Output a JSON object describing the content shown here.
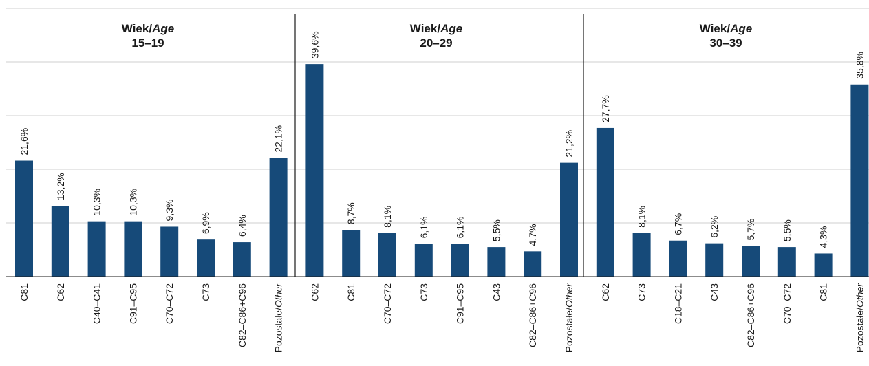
{
  "chart_data": {
    "type": "bar",
    "ylim": [
      0,
      50
    ],
    "grid": true,
    "bar_color": "#164a79",
    "panels": [
      {
        "title_prefix": "Wiek/",
        "title_italic": "Age",
        "age_range": "15–19",
        "categories": [
          {
            "code": "C81",
            "italic_part": ""
          },
          {
            "code": "C62",
            "italic_part": ""
          },
          {
            "code": "C40–C41",
            "italic_part": ""
          },
          {
            "code": "C91–C95",
            "italic_part": ""
          },
          {
            "code": "C70–C72",
            "italic_part": ""
          },
          {
            "code": "C73",
            "italic_part": ""
          },
          {
            "code": "C82–C86+C96",
            "italic_part": ""
          },
          {
            "code": "Pozostałe/",
            "italic_part": "Other"
          }
        ],
        "values": [
          21.6,
          13.2,
          10.3,
          10.3,
          9.3,
          6.9,
          6.4,
          22.1
        ],
        "value_labels": [
          "21,6%",
          "13,2%",
          "10,3%",
          "10,3%",
          "9,3%",
          "6,9%",
          "6,4%",
          "22,1%"
        ]
      },
      {
        "title_prefix": "Wiek/",
        "title_italic": "Age",
        "age_range": "20–29",
        "categories": [
          {
            "code": "C62",
            "italic_part": ""
          },
          {
            "code": "C81",
            "italic_part": ""
          },
          {
            "code": "C70–C72",
            "italic_part": ""
          },
          {
            "code": "C73",
            "italic_part": ""
          },
          {
            "code": "C91–C95",
            "italic_part": ""
          },
          {
            "code": "C43",
            "italic_part": ""
          },
          {
            "code": "C82–C86+C96",
            "italic_part": ""
          },
          {
            "code": "Pozostałe/",
            "italic_part": "Other"
          }
        ],
        "values": [
          39.6,
          8.7,
          8.1,
          6.1,
          6.1,
          5.5,
          4.7,
          21.2
        ],
        "value_labels": [
          "39,6%",
          "8,7%",
          "8,1%",
          "6,1%",
          "6,1%",
          "5,5%",
          "4,7%",
          "21,2%"
        ]
      },
      {
        "title_prefix": "Wiek/",
        "title_italic": "Age",
        "age_range": "30–39",
        "categories": [
          {
            "code": "C62",
            "italic_part": ""
          },
          {
            "code": "C73",
            "italic_part": ""
          },
          {
            "code": "C18–C21",
            "italic_part": ""
          },
          {
            "code": "C43",
            "italic_part": ""
          },
          {
            "code": "C82–C86+C96",
            "italic_part": ""
          },
          {
            "code": "C70–C72",
            "italic_part": ""
          },
          {
            "code": "C81",
            "italic_part": ""
          },
          {
            "code": "Pozostałe/",
            "italic_part": "Other"
          }
        ],
        "values": [
          27.7,
          8.1,
          6.7,
          6.2,
          5.7,
          5.5,
          4.3,
          35.8
        ],
        "value_labels": [
          "27,7%",
          "8,1%",
          "6,7%",
          "6,2%",
          "5,7%",
          "5,5%",
          "4,3%",
          "35,8%"
        ]
      }
    ]
  }
}
